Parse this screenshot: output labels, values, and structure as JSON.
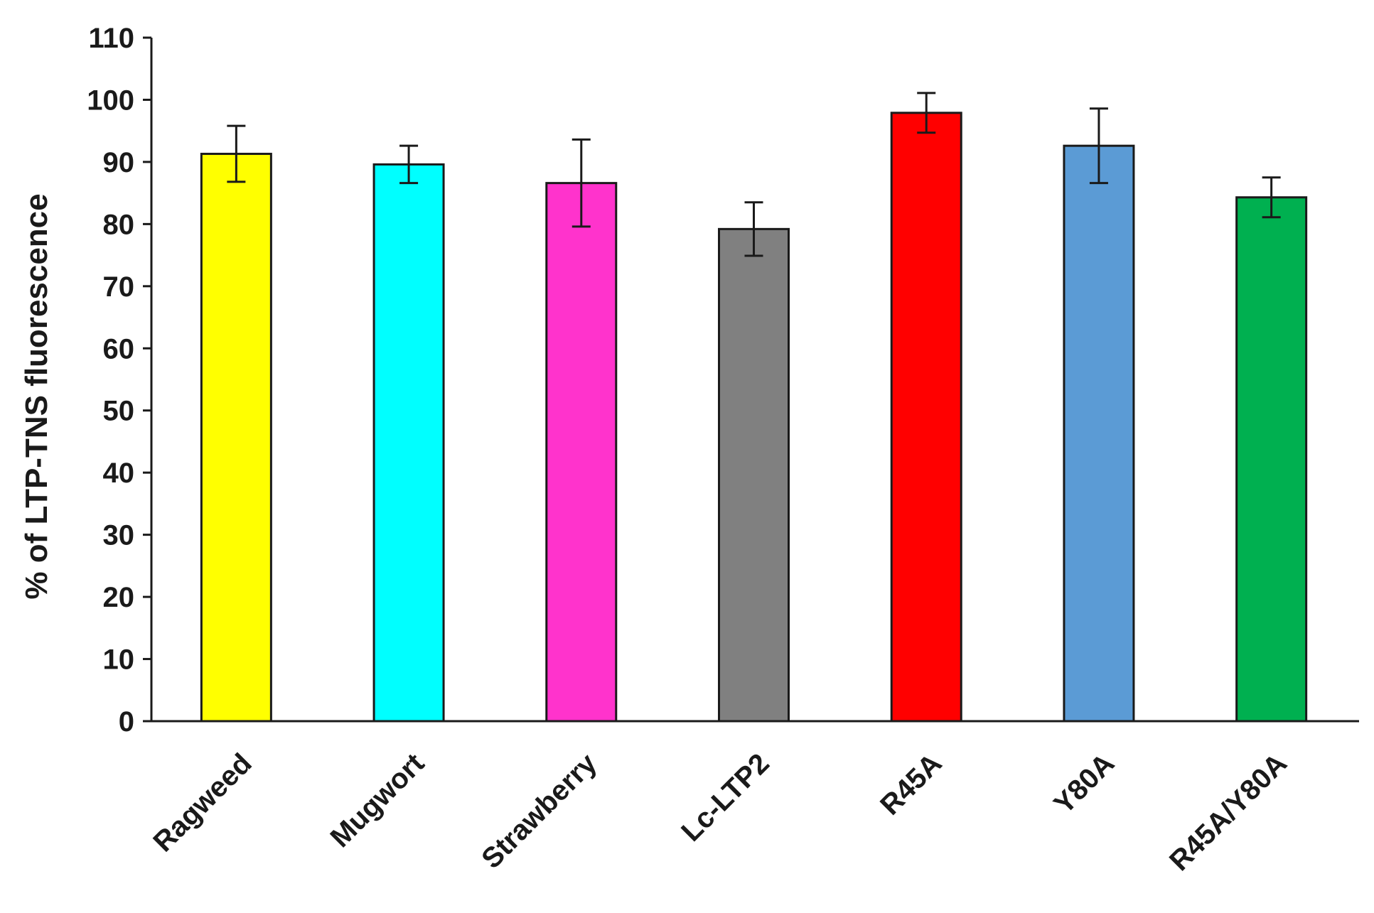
{
  "chart_data": {
    "type": "bar",
    "title": "",
    "xlabel": "",
    "ylabel": "% of LTP-TNS fluorescence",
    "ylim": [
      0,
      110
    ],
    "yticks": [
      0,
      10,
      20,
      30,
      40,
      50,
      60,
      70,
      80,
      90,
      100,
      110
    ],
    "grid": false,
    "legend": "none",
    "categories": [
      "Ragweed",
      "Mugwort",
      "Strawberry",
      "Lc-LTP2",
      "R45A",
      "Y80A",
      "R45A/Y80A"
    ],
    "values": [
      91.3,
      89.6,
      86.6,
      79.2,
      97.9,
      92.6,
      84.3
    ],
    "errors": [
      4.5,
      3.0,
      7.0,
      4.3,
      3.2,
      6.0,
      3.2
    ],
    "colors": [
      "#ffff00",
      "#00ffff",
      "#ff33cc",
      "#808080",
      "#ff0000",
      "#5b9bd5",
      "#00b050"
    ]
  }
}
